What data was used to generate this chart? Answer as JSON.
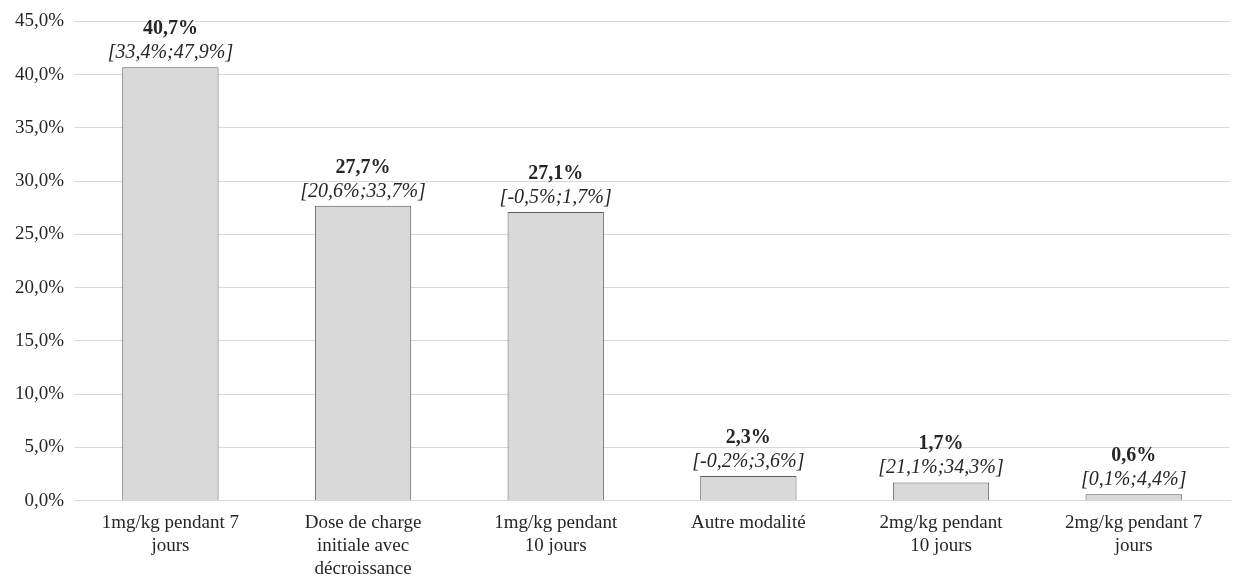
{
  "chart_data": {
    "type": "bar",
    "categories": [
      "1mg/kg pendant 7 jours",
      "Dose de charge initiale avec décroissance",
      "1mg/kg pendant 10 jours",
      "Autre modalité",
      "2mg/kg pendant 10 jours",
      "2mg/kg pendant 7 jours"
    ],
    "values": [
      40.7,
      27.7,
      27.1,
      2.3,
      1.7,
      0.6
    ],
    "value_labels": [
      "40,7%",
      "27,7%",
      "27,1%",
      "2,3%",
      "1,7%",
      "0,6%"
    ],
    "color": "#d9d9d9",
    "ylim": [
      0,
      45
    ],
    "yticks": [
      {
        "value": 0,
        "label": "0,0%"
      },
      {
        "value": 5,
        "label": "5,0%"
      },
      {
        "value": 10,
        "label": "10,0%"
      },
      {
        "value": 15,
        "label": "15,0%"
      },
      {
        "value": 20,
        "label": "20,0%"
      },
      {
        "value": 25,
        "label": "25,0%"
      },
      {
        "value": 30,
        "label": "30,0%"
      },
      {
        "value": 35,
        "label": "35,0%"
      },
      {
        "value": 40,
        "label": "40,0%"
      },
      {
        "value": 45,
        "label": "45,0%"
      }
    ],
    "grid": "y",
    "legend": false,
    "annotations": [
      {
        "text": "[33,4%;47,9%]",
        "x": "1mg/kg pendant 7 jours",
        "y": 40.7
      },
      {
        "text": "[20,6%;33,7%]",
        "x": "Dose de charge initiale avec décroissance",
        "y": 27.7
      },
      {
        "text": "[-0,5%;1,7%]",
        "x": "1mg/kg pendant 10 jours",
        "y": 27.1
      },
      {
        "text": "[-0,2%;3,6%]",
        "x": "Autre modalité",
        "y": 2.3
      },
      {
        "text": "[21,1%;34,3%]",
        "x": "2mg/kg pendant 10 jours",
        "y": 1.7
      },
      {
        "text": "[0,1%;4,4%]",
        "x": "2mg/kg pendant 7 jours",
        "y": 0.6
      }
    ]
  }
}
